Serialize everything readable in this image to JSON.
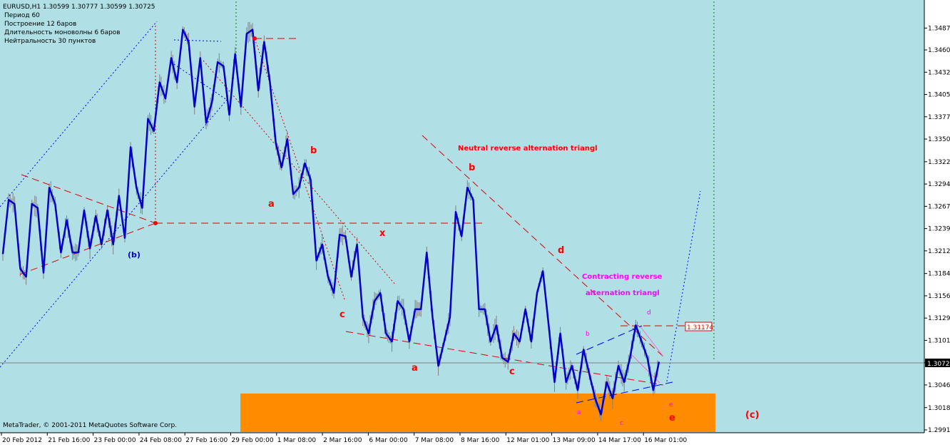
{
  "window": {
    "symbol_line": "EURUSD,H1  1.30599 1.30777 1.30599 1.30725",
    "info_lines": [
      "Период  60",
      "Построение     12 баров",
      "Длительность моноволны   6 баров",
      "Нейтральность  30  пунктов"
    ],
    "copyright": "MetaTrader, © 2001-2011 MetaQuotes Software Corp."
  },
  "colors": {
    "background": "#b0e0e6",
    "wave": "#0000cc",
    "bars": "#808080",
    "labels_red": "#ff0000",
    "labels_magenta": "#ff00ff",
    "target_zone": "#ff8c00"
  },
  "chart_data": {
    "type": "line",
    "title": "",
    "ylim": [
      1.2991,
      1.3497
    ],
    "y_ticks": [
      "1.34870",
      "1.34600",
      "1.34325",
      "1.34050",
      "1.33775",
      "1.33500",
      "1.33220",
      "1.32945",
      "1.32670",
      "1.32395",
      "1.32120",
      "1.31840",
      "1.31565",
      "1.31290",
      "1.31015",
      "1.30740",
      "1.30465",
      "1.30185",
      "1.29910"
    ],
    "x_ticks": [
      "20 Feb 2012",
      "21 Feb 16:00",
      "23 Feb 00:00",
      "24 Feb 08:00",
      "27 Feb 16:00",
      "29 Feb 00:00",
      "1 Mar 08:00",
      "2 Mar 16:00",
      "6 Mar 00:00",
      "7 Mar 08:00",
      "8 Mar 16:00",
      "12 Mar 01:00",
      "13 Mar 09:00",
      "14 Mar 17:00",
      "16 Mar 01:00"
    ],
    "current_price": "1.30725",
    "marked_level": "1.31174",
    "series": [
      {
        "values": [
          1.3208,
          1.3275,
          1.327,
          1.319,
          1.318,
          1.327,
          1.3265,
          1.3185,
          1.329,
          1.327,
          1.321,
          1.325,
          1.321,
          1.321,
          1.3262,
          1.3215,
          1.3255,
          1.322,
          1.3262,
          1.322,
          1.328,
          1.3228,
          1.334,
          1.329,
          1.3265,
          1.3375,
          1.336,
          1.342,
          1.34,
          1.345,
          1.342,
          1.3485,
          1.347,
          1.339,
          1.345,
          1.337,
          1.3395,
          1.3445,
          1.344,
          1.338,
          1.3455,
          1.339,
          1.348,
          1.3485,
          1.341,
          1.347,
          1.342,
          1.3345,
          1.3315,
          1.335,
          1.3282,
          1.329,
          1.332,
          1.33,
          1.32,
          1.322,
          1.318,
          1.316,
          1.3232,
          1.323,
          1.318,
          1.322,
          1.313,
          1.311,
          1.315,
          1.316,
          1.311,
          1.31,
          1.315,
          1.314,
          1.31,
          1.314,
          1.314,
          1.321,
          1.313,
          1.307,
          1.31,
          1.313,
          1.326,
          1.323,
          1.329,
          1.3275,
          1.314,
          1.314,
          1.31,
          1.312,
          1.308,
          1.3075,
          1.311,
          1.31,
          1.314,
          1.31,
          1.316,
          1.3187,
          1.312,
          1.305,
          1.311,
          1.305,
          1.307,
          1.304,
          1.309,
          1.306,
          1.303,
          1.301,
          1.305,
          1.303,
          1.307,
          1.305,
          1.308,
          1.312,
          1.31,
          1.308,
          1.304,
          1.3075
        ]
      }
    ]
  },
  "annotations": {
    "neutral_title": "Neutral reverse alternation triangl",
    "contracting_title_1": "Contracting reverse",
    "contracting_title_2": "alternation triangl",
    "a1": "a",
    "b1": "b",
    "c1": "c",
    "x": "x",
    "a2": "a",
    "b2": "b",
    "c2": "c",
    "d2": "d",
    "e2": "e",
    "a3": "a",
    "b3": "b",
    "c3": "c",
    "d3": "d",
    "e3": "e",
    "b_paren": "(b)",
    "c_paren": "(c)"
  }
}
